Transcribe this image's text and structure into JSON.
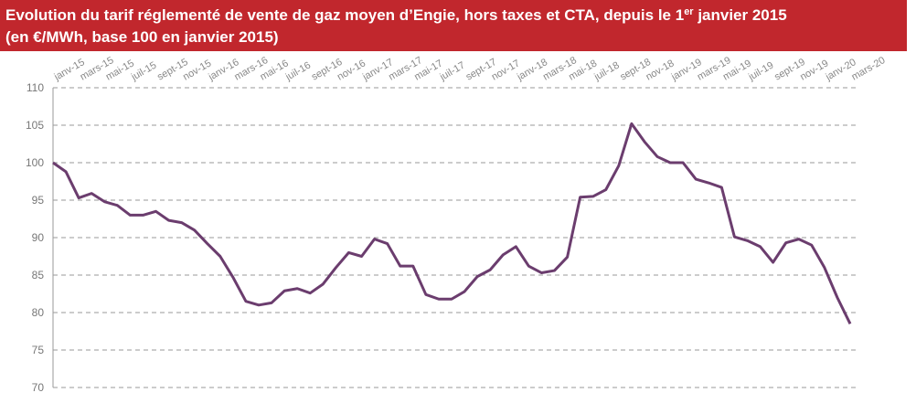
{
  "chart_data": {
    "type": "line",
    "title": [
      "Evolution du tarif réglementé de vente de gaz moyen d’Engie, hors taxes et CTA, depuis le 1",
      "er",
      " janvier 2015"
    ],
    "subtitle": "(en €/MWh, base 100 en janvier 2015)",
    "categories": [
      "janv-15",
      null,
      "mars-15",
      null,
      "mai-15",
      null,
      "juil-15",
      null,
      "sept-15",
      null,
      "nov-15",
      null,
      "janv-16",
      null,
      "mars-16",
      null,
      "mai-16",
      null,
      "juil-16",
      null,
      "sept-16",
      null,
      "nov-16",
      null,
      "janv-17",
      null,
      "mars-17",
      null,
      "mai-17",
      null,
      "juil-17",
      null,
      "sept-17",
      null,
      "nov-17",
      null,
      "janv-18",
      null,
      "mars-18",
      null,
      "mai-18",
      null,
      "juil-18",
      null,
      "sept-18",
      null,
      "nov-18",
      null,
      "janv-19",
      null,
      "mars-19",
      null,
      "mai-19",
      null,
      "juil-19",
      null,
      "sept-19",
      null,
      "nov-19",
      null,
      "janv-20",
      null,
      "mars-20"
    ],
    "series": [
      {
        "name": "Tarif",
        "color": "#6b3d6e",
        "values": [
          100,
          98.8,
          95.3,
          95.9,
          94.8,
          94.3,
          93.0,
          93.0,
          93.5,
          92.3,
          92.0,
          91.0,
          89.2,
          87.5,
          84.7,
          81.5,
          81.0,
          81.3,
          82.9,
          83.2,
          82.6,
          83.8,
          86.0,
          88.0,
          87.5,
          89.8,
          89.2,
          86.2,
          86.2,
          82.4,
          81.8,
          81.8,
          82.8,
          84.8,
          85.7,
          87.7,
          88.8,
          86.2,
          85.3,
          85.6,
          87.4,
          95.4,
          95.5,
          96.4,
          99.6,
          105.2,
          102.8,
          100.8,
          100.0,
          100.0,
          97.8,
          97.3,
          96.7,
          90.1,
          89.6,
          88.8,
          86.7,
          89.3,
          89.8,
          89.0,
          86.0,
          82.0,
          78.5
        ]
      }
    ],
    "ylim": [
      70,
      110
    ],
    "yticks": [
      70,
      75,
      80,
      85,
      90,
      95,
      100,
      105,
      110
    ],
    "grid": true
  }
}
